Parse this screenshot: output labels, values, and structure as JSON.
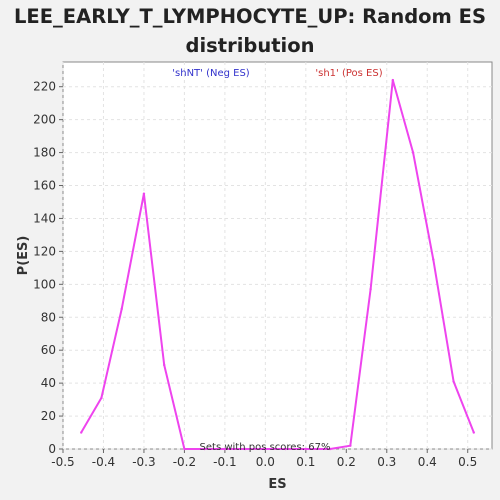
{
  "chart_data": {
    "type": "line",
    "title_line1": "LEE_EARLY_T_LYMPHOCYTE_UP: Random ES",
    "title_line2": "distribution",
    "xlabel": "ES",
    "ylabel": "P(ES)",
    "xlim": [
      -0.5,
      0.56
    ],
    "ylim": [
      0,
      235
    ],
    "x_ticks": [
      -0.5,
      -0.4,
      -0.3,
      -0.2,
      -0.1,
      0.0,
      0.1,
      0.2,
      0.3,
      0.4,
      0.5
    ],
    "x_tick_labels": [
      "-0.5",
      "-0.4",
      "-0.3",
      "-0.2",
      "-0.1",
      "0.0",
      "0.1",
      "0.2",
      "0.3",
      "0.4",
      "0.5"
    ],
    "y_ticks": [
      0,
      20,
      40,
      60,
      80,
      100,
      120,
      140,
      160,
      180,
      200,
      220
    ],
    "y_tick_labels": [
      "0",
      "20",
      "40",
      "60",
      "80",
      "100",
      "120",
      "140",
      "160",
      "180",
      "200",
      "220"
    ],
    "grid": true,
    "series": [
      {
        "color": "#ee44ee",
        "x": [
          -0.455,
          -0.405,
          -0.355,
          -0.3,
          -0.25,
          -0.2,
          -0.15,
          -0.1,
          -0.05,
          0.0,
          0.05,
          0.1,
          0.16,
          0.21,
          0.26,
          0.315,
          0.365,
          0.415,
          0.465,
          0.515
        ],
        "y": [
          10,
          31,
          85,
          155,
          51,
          0,
          0,
          0,
          0,
          0,
          0,
          0,
          0,
          2,
          97,
          224,
          180,
          115,
          41,
          10
        ]
      }
    ],
    "annotations": {
      "neg_label": "'shNT' (Neg ES)",
      "neg_color": "#3333cc",
      "pos_label": "'sh1' (Pos ES)",
      "pos_color": "#cc3333",
      "footer": "Sets with pos scores: 67%"
    }
  }
}
